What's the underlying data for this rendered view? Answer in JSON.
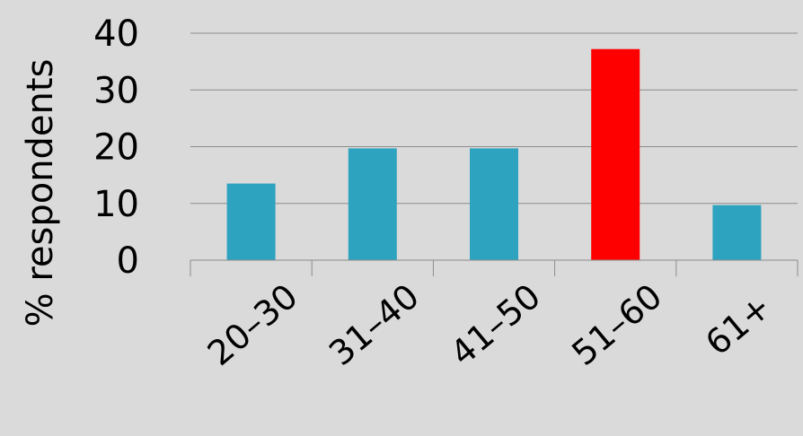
{
  "chart_data": {
    "type": "bar",
    "title": "",
    "xlabel": "",
    "ylabel": "% respondents",
    "categories": [
      "20–30",
      "31–40",
      "41–50",
      "51–60",
      "61+"
    ],
    "values": [
      13.5,
      19.7,
      19.7,
      37.2,
      9.7
    ],
    "ylim": [
      0,
      40
    ],
    "yticks": [
      "0",
      "10",
      "20",
      "30",
      "40"
    ],
    "grid": true,
    "legend": "none",
    "bar_colors": [
      "#2ea3c0",
      "#2ea3c0",
      "#2ea3c0",
      "#ff0000",
      "#2ea3c0"
    ],
    "grid_color": "#8c8c8c",
    "text_color": "#000000"
  }
}
